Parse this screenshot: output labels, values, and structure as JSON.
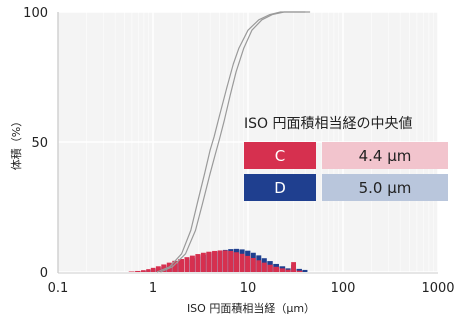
{
  "chart_data": {
    "type": "bar",
    "title": "",
    "xlabel": "ISO 円面積相当経（μm）",
    "ylabel": "体積（%）",
    "x_scale": "log",
    "xlim": [
      0.1,
      1000
    ],
    "ylim": [
      0,
      100
    ],
    "x_ticks": [
      "0.1",
      "1",
      "10",
      "100",
      "1000"
    ],
    "y_ticks": [
      "0",
      "50",
      "100"
    ],
    "grid": true,
    "colors": {
      "C": "#d6304f",
      "D": "#1f3f8f",
      "cumulative": "#9a9a9a"
    },
    "histogram_C": {
      "x": [
        0.6,
        0.7,
        0.8,
        0.9,
        1.0,
        1.15,
        1.3,
        1.5,
        1.7,
        2.0,
        2.3,
        2.6,
        3.0,
        3.4,
        3.9,
        4.5,
        5.1,
        5.8,
        6.6,
        7.6,
        8.7,
        10,
        11.5,
        13,
        15,
        17,
        20,
        23,
        27,
        30,
        35
      ],
      "values": [
        0.2,
        0.4,
        0.7,
        1.1,
        1.6,
        2.2,
        2.9,
        3.6,
        4.3,
        5.0,
        5.7,
        6.3,
        6.9,
        7.4,
        7.8,
        8.1,
        8.3,
        8.3,
        8.1,
        7.6,
        7.0,
        6.2,
        5.4,
        4.5,
        3.6,
        2.8,
        2.0,
        1.4,
        0.9,
        3.8,
        0.5
      ]
    },
    "histogram_D": {
      "x": [
        0.7,
        0.8,
        0.9,
        1.0,
        1.15,
        1.3,
        1.5,
        1.7,
        2.0,
        2.3,
        2.6,
        3.0,
        3.4,
        3.9,
        4.5,
        5.1,
        5.8,
        6.6,
        7.6,
        8.7,
        10,
        11.5,
        13,
        15,
        17,
        20,
        23,
        27,
        30,
        35,
        40
      ],
      "values": [
        0.2,
        0.4,
        0.7,
        1.0,
        1.4,
        1.9,
        2.5,
        3.2,
        3.9,
        4.6,
        5.3,
        6.0,
        6.6,
        7.2,
        7.7,
        8.1,
        8.5,
        8.8,
        8.9,
        8.7,
        8.2,
        7.4,
        6.4,
        5.3,
        4.2,
        3.1,
        2.2,
        1.4,
        2.8,
        1.2,
        0.8
      ]
    },
    "cumulative_C": {
      "x": [
        1.1,
        1.5,
        2,
        2.5,
        3,
        3.5,
        4,
        4.4,
        5,
        6,
        7,
        8,
        10,
        13,
        17,
        22,
        30,
        40
      ],
      "values": [
        0,
        2,
        7,
        16,
        28,
        38,
        47,
        52,
        60,
        71,
        80,
        86,
        93,
        97,
        99,
        100,
        100,
        100
      ]
    },
    "cumulative_D": {
      "x": [
        1.2,
        1.6,
        2.2,
        2.8,
        3.3,
        4,
        4.5,
        5,
        5.6,
        6.5,
        7.5,
        9,
        11,
        14,
        18,
        24,
        32,
        45
      ],
      "values": [
        0,
        2,
        7,
        16,
        26,
        38,
        45,
        51,
        58,
        68,
        77,
        86,
        93,
        97,
        99,
        100,
        100,
        100
      ]
    },
    "legend": {
      "title": "ISO 円面積相当経の中央値",
      "rows": [
        {
          "key": "C",
          "value": "4.4 μm",
          "key_color": "#d6304f",
          "value_color": "#f2c4cd"
        },
        {
          "key": "D",
          "value": "5.0 μm",
          "key_color": "#1f3f8f",
          "value_color": "#b9c6dc"
        }
      ]
    }
  }
}
